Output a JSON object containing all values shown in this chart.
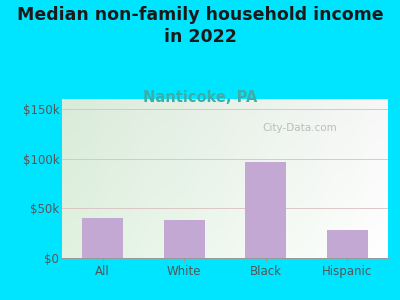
{
  "title": "Median non-family household income\nin 2022",
  "subtitle": "Nanticoke, PA",
  "categories": [
    "All",
    "White",
    "Black",
    "Hispanic"
  ],
  "values": [
    40000,
    38000,
    97000,
    28000
  ],
  "bar_color": "#c4a8d4",
  "title_fontsize": 12.5,
  "subtitle_fontsize": 10.5,
  "subtitle_color": "#3aafa9",
  "title_color": "#1a1a1a",
  "tick_color": "#555555",
  "bg_outer": "#00e5ff",
  "gridline_color": "#d8c0c0",
  "yticks": [
    0,
    50000,
    100000,
    150000
  ],
  "ylim": [
    0,
    160000
  ],
  "watermark": "City-Data.com"
}
